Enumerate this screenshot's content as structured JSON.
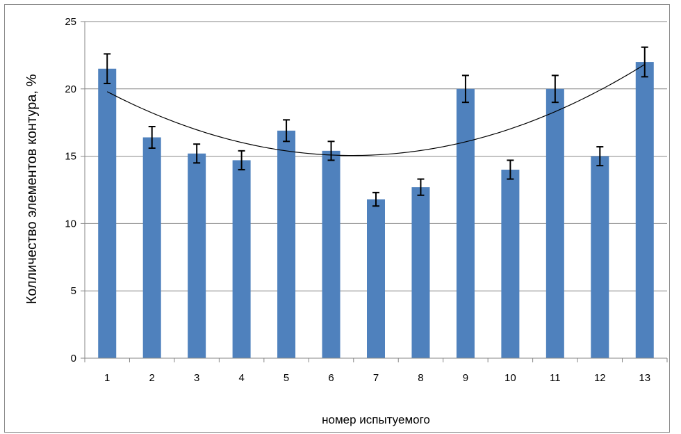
{
  "chart_data": {
    "type": "bar",
    "categories": [
      "1",
      "2",
      "3",
      "4",
      "5",
      "6",
      "7",
      "8",
      "9",
      "10",
      "11",
      "12",
      "13"
    ],
    "values": [
      21.5,
      16.4,
      15.2,
      14.7,
      16.9,
      15.4,
      11.8,
      12.7,
      20.0,
      14.0,
      20.0,
      15.0,
      22.0
    ],
    "errors": [
      1.1,
      0.8,
      0.7,
      0.7,
      0.8,
      0.7,
      0.5,
      0.6,
      1.0,
      0.7,
      1.0,
      0.7,
      1.1
    ],
    "trendline": {
      "type": "polynomial-2",
      "coefficients": [
        21.69,
        -2.052,
        0.1586
      ]
    },
    "title": "",
    "xlabel": "номер испытуемого",
    "ylabel": "Колличество элементов контура, %",
    "ylim": [
      0,
      25
    ],
    "yticks": [
      0,
      5,
      10,
      15,
      20,
      25
    ],
    "grid": true,
    "legend": "none",
    "bar_color": "#4f81bd",
    "grid_color": "#868686"
  }
}
